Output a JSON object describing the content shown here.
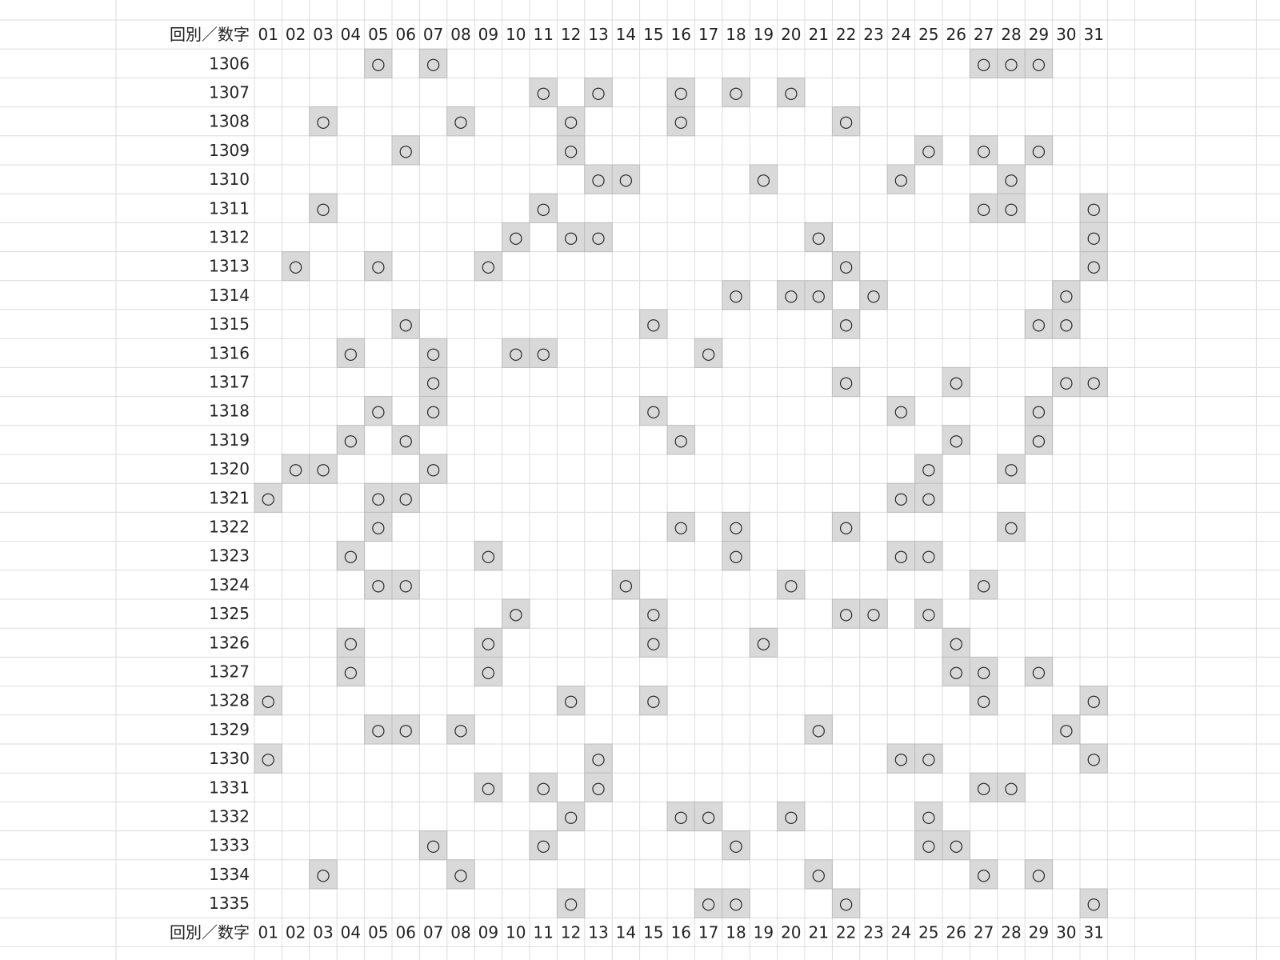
{
  "table": {
    "header": [
      "回別／数字",
      "01",
      "02",
      "03",
      "04",
      "05",
      "06",
      "07",
      "08",
      "09",
      "10",
      "11",
      "12",
      "13",
      "14",
      "15",
      "16",
      "17",
      "18",
      "19",
      "20",
      "21",
      "22",
      "23",
      "24",
      "25",
      "26",
      "27",
      "28",
      "29",
      "30",
      "31"
    ],
    "mark_symbol": "○",
    "rows": [
      {
        "round": "1306",
        "marks": [
          5,
          7,
          27,
          28,
          29
        ]
      },
      {
        "round": "1307",
        "marks": [
          11,
          13,
          16,
          18,
          20
        ]
      },
      {
        "round": "1308",
        "marks": [
          3,
          8,
          12,
          16,
          22
        ]
      },
      {
        "round": "1309",
        "marks": [
          6,
          12,
          25,
          27,
          29
        ]
      },
      {
        "round": "1310",
        "marks": [
          13,
          14,
          19,
          24,
          28
        ]
      },
      {
        "round": "1311",
        "marks": [
          3,
          11,
          27,
          28,
          31
        ]
      },
      {
        "round": "1312",
        "marks": [
          10,
          12,
          13,
          21,
          31
        ]
      },
      {
        "round": "1313",
        "marks": [
          2,
          5,
          9,
          22,
          31
        ]
      },
      {
        "round": "1314",
        "marks": [
          18,
          20,
          21,
          23,
          30
        ]
      },
      {
        "round": "1315",
        "marks": [
          6,
          15,
          22,
          29,
          30
        ]
      },
      {
        "round": "1316",
        "marks": [
          4,
          7,
          10,
          11,
          17
        ]
      },
      {
        "round": "1317",
        "marks": [
          7,
          22,
          26,
          30,
          31
        ]
      },
      {
        "round": "1318",
        "marks": [
          5,
          7,
          15,
          24,
          29
        ]
      },
      {
        "round": "1319",
        "marks": [
          4,
          6,
          16,
          26,
          29
        ]
      },
      {
        "round": "1320",
        "marks": [
          2,
          3,
          7,
          25,
          28
        ]
      },
      {
        "round": "1321",
        "marks": [
          1,
          5,
          6,
          24,
          25
        ]
      },
      {
        "round": "1322",
        "marks": [
          5,
          16,
          18,
          22,
          28
        ]
      },
      {
        "round": "1323",
        "marks": [
          4,
          9,
          18,
          24,
          25
        ]
      },
      {
        "round": "1324",
        "marks": [
          5,
          6,
          14,
          20,
          27
        ]
      },
      {
        "round": "1325",
        "marks": [
          10,
          15,
          22,
          23,
          25
        ]
      },
      {
        "round": "1326",
        "marks": [
          4,
          9,
          15,
          19,
          26
        ]
      },
      {
        "round": "1327",
        "marks": [
          4,
          9,
          26,
          27,
          29
        ]
      },
      {
        "round": "1328",
        "marks": [
          1,
          12,
          15,
          27,
          31
        ]
      },
      {
        "round": "1329",
        "marks": [
          5,
          6,
          8,
          21,
          30
        ]
      },
      {
        "round": "1330",
        "marks": [
          1,
          13,
          24,
          25,
          31
        ]
      },
      {
        "round": "1331",
        "marks": [
          9,
          11,
          13,
          27,
          28
        ]
      },
      {
        "round": "1332",
        "marks": [
          12,
          16,
          17,
          20,
          25
        ]
      },
      {
        "round": "1333",
        "marks": [
          7,
          11,
          18,
          25,
          26
        ]
      },
      {
        "round": "1334",
        "marks": [
          3,
          8,
          21,
          27,
          29
        ]
      },
      {
        "round": "1335",
        "marks": [
          12,
          17,
          18,
          22,
          31
        ]
      }
    ]
  }
}
